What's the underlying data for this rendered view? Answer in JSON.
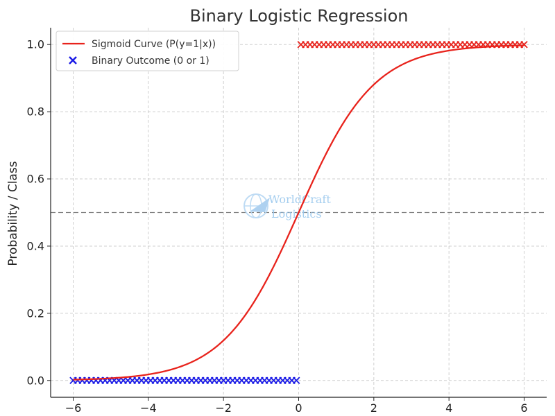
{
  "chart_data": {
    "type": "line",
    "title": "Binary Logistic Regression",
    "xlabel": "",
    "ylabel": "Probability / Class",
    "xlim": [
      -6.6,
      6.6
    ],
    "ylim": [
      -0.05,
      1.05
    ],
    "x_ticks": [
      -6,
      -4,
      -2,
      0,
      2,
      4,
      6
    ],
    "y_ticks": [
      0.0,
      0.2,
      0.4,
      0.6,
      0.8,
      1.0
    ],
    "x_tick_labels": [
      "−6",
      "−4",
      "−2",
      "0",
      "2",
      "4",
      "6"
    ],
    "y_tick_labels": [
      "0.0",
      "0.2",
      "0.4",
      "0.6",
      "0.8",
      "1.0"
    ],
    "grid": true,
    "threshold_line": {
      "y": 0.5,
      "style": "dashed",
      "color": "#808080"
    },
    "legend_position": "top-left",
    "series": [
      {
        "name": "Sigmoid Curve (P(y=1|x))",
        "type": "line",
        "color": "#e8231c",
        "function": "sigmoid",
        "x_range": [
          -6,
          6
        ]
      },
      {
        "name": "Binary Outcome (0 or 1)",
        "type": "scatter",
        "marker": "x",
        "legend_color": "#1a1ae6",
        "color_when_0": "#1a1ae6",
        "color_when_1": "#e8231c",
        "x_range": [
          -6,
          6
        ],
        "point_count": 100,
        "threshold_x": 0
      }
    ]
  },
  "watermark": {
    "line1": "WorldCraft",
    "line2": "Logistics",
    "icon": "globe-plane-icon",
    "color": "#9cc9ee"
  }
}
